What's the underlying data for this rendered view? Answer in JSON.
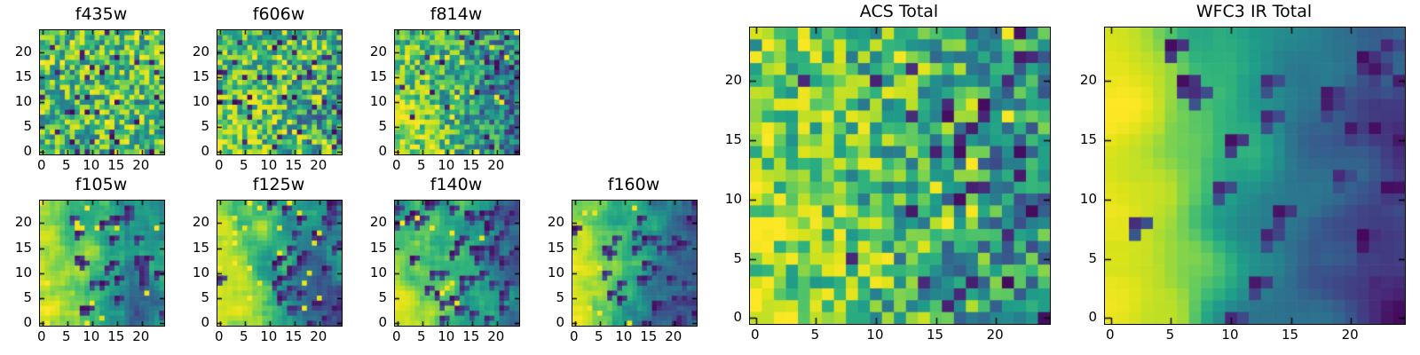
{
  "figure": {
    "background_color": "#ffffff",
    "axis_color": "#000000",
    "text_color": "#000000"
  },
  "chart_data": {
    "type": "heatmap",
    "description": "Grid of 9 viridis-colormap image stamps (HST filter cutouts): seven individual filters plus ACS and WFC3 IR totals",
    "colormap": {
      "name": "viridis",
      "stops": [
        "#440154",
        "#482878",
        "#3e4989",
        "#31688e",
        "#26828e",
        "#1f9e89",
        "#35b779",
        "#6ece58",
        "#b5de2b",
        "#dce319",
        "#fde725"
      ]
    },
    "grid_size": 25,
    "axis_range": [
      -0.5,
      24.5
    ],
    "x_ticks": [
      0,
      5,
      10,
      15,
      20
    ],
    "y_ticks": [
      0,
      5,
      10,
      15,
      20
    ],
    "grid": false,
    "legend": "none",
    "panels": [
      {
        "id": "f435w",
        "title": "f435w",
        "field": {
          "seed": 11,
          "noise": 0.3,
          "blur": 0,
          "p_dark": 0.05,
          "p_bright": 0.08,
          "control": [
            [
              0.63,
              0.63,
              0.63,
              0.63,
              0.63
            ],
            [
              0.63,
              0.63,
              0.63,
              0.63,
              0.63
            ],
            [
              0.63,
              0.63,
              0.63,
              0.63,
              0.63
            ],
            [
              0.63,
              0.63,
              0.63,
              0.63,
              0.63
            ],
            [
              0.63,
              0.63,
              0.63,
              0.63,
              0.63
            ]
          ]
        }
      },
      {
        "id": "f606w",
        "title": "f606w",
        "field": {
          "seed": 22,
          "noise": 0.3,
          "blur": 0,
          "p_dark": 0.05,
          "p_bright": 0.09,
          "control": [
            [
              0.65,
              0.65,
              0.62,
              0.58,
              0.6
            ],
            [
              0.68,
              0.65,
              0.62,
              0.55,
              0.58
            ],
            [
              0.68,
              0.66,
              0.62,
              0.52,
              0.55
            ],
            [
              0.7,
              0.68,
              0.6,
              0.45,
              0.5
            ],
            [
              0.68,
              0.7,
              0.62,
              0.55,
              0.55
            ]
          ]
        }
      },
      {
        "id": "f814w",
        "title": "f814w",
        "field": {
          "seed": 33,
          "noise": 0.26,
          "blur": 0,
          "p_dark": 0.04,
          "p_bright": 0.05,
          "control": [
            [
              0.62,
              0.6,
              0.58,
              0.5,
              0.45
            ],
            [
              0.68,
              0.63,
              0.55,
              0.45,
              0.35
            ],
            [
              0.72,
              0.68,
              0.55,
              0.42,
              0.3
            ],
            [
              0.78,
              0.72,
              0.55,
              0.45,
              0.35
            ],
            [
              0.8,
              0.72,
              0.58,
              0.5,
              0.42
            ]
          ]
        }
      },
      {
        "id": "f105w",
        "title": "f105w",
        "field": {
          "seed": 44,
          "noise": 0.3,
          "blur": 1,
          "p_dark": 0.05,
          "p_bright": 0.03,
          "control": [
            [
              0.72,
              0.65,
              0.6,
              0.4,
              0.45
            ],
            [
              0.8,
              0.66,
              0.58,
              0.5,
              0.4
            ],
            [
              0.85,
              0.7,
              0.6,
              0.5,
              0.5
            ],
            [
              0.88,
              0.72,
              0.55,
              0.3,
              0.45
            ],
            [
              0.9,
              0.78,
              0.6,
              0.28,
              0.5
            ]
          ]
        }
      },
      {
        "id": "f125w",
        "title": "f125w",
        "field": {
          "seed": 55,
          "noise": 0.32,
          "blur": 1,
          "p_dark": 0.06,
          "p_bright": 0.04,
          "control": [
            [
              0.7,
              0.72,
              0.6,
              0.5,
              0.42
            ],
            [
              0.82,
              0.65,
              0.55,
              0.45,
              0.38
            ],
            [
              0.88,
              0.72,
              0.5,
              0.3,
              0.42
            ],
            [
              0.9,
              0.82,
              0.5,
              0.15,
              0.3
            ],
            [
              0.88,
              0.85,
              0.55,
              0.35,
              0.22
            ]
          ]
        }
      },
      {
        "id": "f140w",
        "title": "f140w",
        "field": {
          "seed": 66,
          "noise": 0.3,
          "blur": 1,
          "p_dark": 0.06,
          "p_bright": 0.03,
          "control": [
            [
              0.62,
              0.6,
              0.55,
              0.42,
              0.2
            ],
            [
              0.68,
              0.6,
              0.55,
              0.5,
              0.3
            ],
            [
              0.75,
              0.65,
              0.6,
              0.45,
              0.25
            ],
            [
              0.88,
              0.7,
              0.55,
              0.5,
              0.35
            ],
            [
              0.93,
              0.75,
              0.6,
              0.45,
              0.4
            ]
          ]
        }
      },
      {
        "id": "f160w",
        "title": "f160w",
        "field": {
          "seed": 77,
          "noise": 0.28,
          "blur": 1,
          "p_dark": 0.05,
          "p_bright": 0.02,
          "control": [
            [
              0.85,
              0.62,
              0.55,
              0.45,
              0.3
            ],
            [
              0.9,
              0.65,
              0.55,
              0.35,
              0.25
            ],
            [
              0.92,
              0.7,
              0.6,
              0.35,
              0.2
            ],
            [
              0.93,
              0.68,
              0.5,
              0.3,
              0.25
            ],
            [
              0.95,
              0.65,
              0.45,
              0.22,
              0.15
            ]
          ]
        }
      },
      {
        "id": "acs_total",
        "title": "ACS Total",
        "field": {
          "seed": 88,
          "noise": 0.28,
          "blur": 0,
          "p_dark": 0.045,
          "p_bright": 0.05,
          "control": [
            [
              0.7,
              0.66,
              0.6,
              0.55,
              0.5
            ],
            [
              0.74,
              0.68,
              0.6,
              0.52,
              0.45
            ],
            [
              0.8,
              0.7,
              0.6,
              0.5,
              0.44
            ],
            [
              0.84,
              0.72,
              0.6,
              0.5,
              0.45
            ],
            [
              0.8,
              0.75,
              0.62,
              0.52,
              0.5
            ]
          ]
        }
      },
      {
        "id": "wfc3_ir_total",
        "title": "WFC3 IR Total",
        "field": {
          "seed": 99,
          "noise": 0.3,
          "blur": 2,
          "p_dark": 0.05,
          "p_bright": 0.0,
          "control": [
            [
              0.88,
              0.62,
              0.52,
              0.35,
              0.25
            ],
            [
              0.95,
              0.7,
              0.5,
              0.3,
              0.2
            ],
            [
              0.95,
              0.72,
              0.45,
              0.25,
              0.16
            ],
            [
              0.96,
              0.75,
              0.45,
              0.22,
              0.15
            ],
            [
              0.95,
              0.7,
              0.42,
              0.3,
              0.12
            ]
          ]
        }
      }
    ]
  }
}
